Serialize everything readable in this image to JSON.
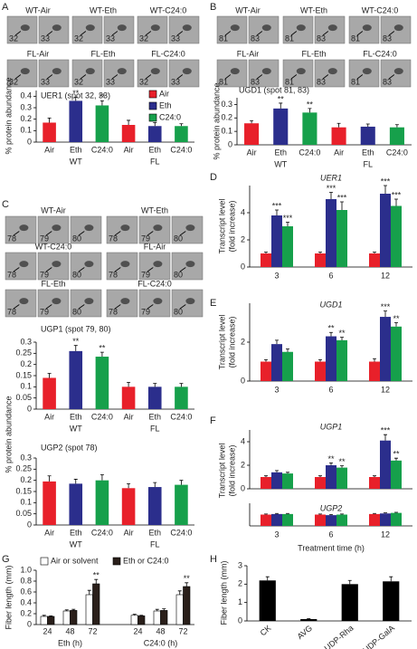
{
  "panel_letters": [
    "A",
    "B",
    "C",
    "D",
    "E",
    "F",
    "G",
    "H"
  ],
  "blots": {
    "A": [
      {
        "label": "WT-Air",
        "spots": [
          "32",
          "33"
        ]
      },
      {
        "label": "WT-Eth",
        "spots": [
          "32",
          "33"
        ]
      },
      {
        "label": "WT-C24:0",
        "spots": [
          "32",
          "33"
        ]
      },
      {
        "label": "FL-Air",
        "spots": [
          "32",
          "33"
        ]
      },
      {
        "label": "FL-Eth",
        "spots": [
          "32",
          "33"
        ]
      },
      {
        "label": "FL-C24:0",
        "spots": [
          "32",
          "33"
        ]
      }
    ],
    "B": [
      {
        "label": "WT-Air",
        "spots": [
          "81",
          "83"
        ]
      },
      {
        "label": "WT-Eth",
        "spots": [
          "81",
          "83"
        ]
      },
      {
        "label": "WT-C24:0",
        "spots": [
          "81",
          "83"
        ]
      },
      {
        "label": "FL-Air",
        "spots": [
          "81",
          "83"
        ]
      },
      {
        "label": "FL-Eth",
        "spots": [
          "81",
          "83"
        ]
      },
      {
        "label": "FL-C24:0",
        "spots": [
          "81",
          "83"
        ]
      }
    ],
    "C": [
      {
        "label": "WT-Air",
        "spots": [
          "78",
          "79",
          "80"
        ]
      },
      {
        "label": "WT-Eth",
        "spots": [
          "78",
          "79",
          "80"
        ]
      },
      {
        "label": "WT-C24:0",
        "spots": [
          "78",
          "79",
          "80"
        ]
      },
      {
        "label": "FL-Air",
        "spots": [
          "78",
          "79",
          "80"
        ]
      },
      {
        "label": "FL-Eth",
        "spots": [
          "78",
          "79",
          "80"
        ]
      },
      {
        "label": "FL-C24:0",
        "spots": [
          "78",
          "79",
          "80"
        ]
      }
    ]
  },
  "chart_data": [
    {
      "type": "bar",
      "title": "UER1 (spot 32, 33)",
      "ylabel": [
        "% protein abundance"
      ],
      "categories": [
        "WT",
        "FL"
      ],
      "legend": "upper right",
      "series": [
        {
          "name": "Air",
          "color": "#e8202a",
          "values": [
            0.17,
            0.15
          ],
          "errors": [
            0.04,
            0.04
          ]
        },
        {
          "name": "Eth",
          "color": "#2b2e8c",
          "values": [
            0.36,
            0.14
          ],
          "errors": [
            0.03,
            0.03
          ],
          "labels": [
            "**",
            null
          ]
        },
        {
          "name": "C24:0",
          "color": "#16a04b",
          "values": [
            0.32,
            0.14
          ],
          "errors": [
            0.04,
            0.02
          ],
          "labels": [
            "**",
            null
          ]
        }
      ],
      "ylim": [
        0,
        0.45
      ],
      "yticks": [
        0,
        0.1,
        0.2,
        0.3,
        0.4
      ]
    },
    {
      "type": "bar",
      "title": "UGD1 (spot 81, 83)",
      "ylabel": [
        "% protein abundance"
      ],
      "categories": [
        "WT",
        "FL"
      ],
      "series": [
        {
          "name": "Air",
          "color": "#e8202a",
          "values": [
            0.16,
            0.13
          ],
          "errors": [
            0.02,
            0.03
          ]
        },
        {
          "name": "Eth",
          "color": "#2b2e8c",
          "values": [
            0.27,
            0.135
          ],
          "errors": [
            0.04,
            0.02
          ],
          "labels": [
            "**",
            null
          ]
        },
        {
          "name": "C24:0",
          "color": "#16a04b",
          "values": [
            0.24,
            0.13
          ],
          "errors": [
            0.03,
            0.02
          ],
          "labels": [
            "**",
            null
          ]
        }
      ],
      "ylim": [
        0,
        0.35
      ],
      "yticks": [
        0,
        0.1,
        0.2,
        0.3
      ]
    },
    {
      "type": "bar",
      "title": "UGP1 (spot 79, 80)",
      "ylabel": [
        "% protein abundance"
      ],
      "categories": [
        "WT",
        "FL"
      ],
      "series": [
        {
          "name": "Air",
          "color": "#e8202a",
          "values": [
            0.14,
            0.1
          ],
          "errors": [
            0.02,
            0.02
          ]
        },
        {
          "name": "Eth",
          "color": "#2b2e8c",
          "values": [
            0.26,
            0.1
          ],
          "errors": [
            0.025,
            0.015
          ],
          "labels": [
            "**",
            null
          ]
        },
        {
          "name": "C24:0",
          "color": "#16a04b",
          "values": [
            0.235,
            0.1
          ],
          "errors": [
            0.02,
            0.015
          ],
          "labels": [
            "**",
            null
          ]
        }
      ],
      "ylim": [
        0,
        0.3
      ],
      "yticks": [
        0,
        0.05,
        0.1,
        0.15,
        0.2,
        0.25,
        0.3
      ]
    },
    {
      "type": "bar",
      "title": "UGP2 (spot 78)",
      "categories": [
        "WT",
        "FL"
      ],
      "series": [
        {
          "name": "Air",
          "color": "#e8202a",
          "values": [
            0.195,
            0.165
          ],
          "errors": [
            0.025,
            0.02
          ]
        },
        {
          "name": "Eth",
          "color": "#2b2e8c",
          "values": [
            0.185,
            0.17
          ],
          "errors": [
            0.02,
            0.02
          ]
        },
        {
          "name": "C24:0",
          "color": "#16a04b",
          "values": [
            0.2,
            0.18
          ],
          "errors": [
            0.025,
            0.02
          ]
        }
      ],
      "ylim": [
        0,
        0.3
      ],
      "yticks": [
        0,
        0.05,
        0.1,
        0.15,
        0.2,
        0.25,
        0.3
      ]
    },
    {
      "type": "bar",
      "title": "UER1",
      "ylabel": [
        "Transcript level",
        "(fold increase)"
      ],
      "categories": [
        "3",
        "6",
        "12"
      ],
      "series": [
        {
          "name": "Air",
          "color": "#e8202a",
          "values": [
            1,
            1,
            1
          ],
          "errors": [
            0.1,
            0.1,
            0.1
          ]
        },
        {
          "name": "Eth",
          "color": "#2b2e8c",
          "values": [
            3.8,
            5.0,
            5.4
          ],
          "errors": [
            0.4,
            0.5,
            0.6
          ],
          "labels": [
            "***",
            "***",
            "***"
          ]
        },
        {
          "name": "C24:0",
          "color": "#16a04b",
          "values": [
            3.0,
            4.2,
            4.5
          ],
          "errors": [
            0.3,
            0.6,
            0.5
          ],
          "labels": [
            "***",
            "***",
            "***"
          ]
        }
      ],
      "ylim": [
        0,
        6
      ],
      "yticks": [
        0,
        2,
        4
      ]
    },
    {
      "type": "bar",
      "title": "UGD1",
      "ylabel": [
        "Transcript level",
        "(fold increase)"
      ],
      "categories": [
        "3",
        "6",
        "12"
      ],
      "series": [
        {
          "name": "Air",
          "color": "#e8202a",
          "values": [
            1,
            1,
            1
          ],
          "errors": [
            0.1,
            0.1,
            0.15
          ]
        },
        {
          "name": "Eth",
          "color": "#2b2e8c",
          "values": [
            1.9,
            2.3,
            3.3
          ],
          "errors": [
            0.2,
            0.2,
            0.3
          ],
          "labels": [
            null,
            "**",
            "***"
          ]
        },
        {
          "name": "C24:0",
          "color": "#16a04b",
          "values": [
            1.5,
            2.1,
            2.8
          ],
          "errors": [
            0.15,
            0.15,
            0.2
          ],
          "labels": [
            null,
            "**",
            "**"
          ]
        }
      ],
      "ylim": [
        0,
        4
      ],
      "yticks": [
        0,
        2
      ]
    },
    {
      "type": "bar",
      "title": "UGP1",
      "ylabel": [
        "Transcript level",
        "(fold increase)"
      ],
      "series": [
        {
          "name": "Air",
          "color": "#e8202a",
          "values": [
            1,
            1,
            1
          ],
          "errors": [
            0.1,
            0.1,
            0.1
          ]
        },
        {
          "name": "Eth",
          "color": "#2b2e8c",
          "values": [
            1.4,
            2.0,
            4.1
          ],
          "errors": [
            0.15,
            0.2,
            0.5
          ],
          "labels": [
            null,
            "**",
            "***"
          ]
        },
        {
          "name": "C24:0",
          "color": "#16a04b",
          "values": [
            1.3,
            1.8,
            2.4
          ],
          "errors": [
            0.1,
            0.15,
            0.2
          ],
          "labels": [
            null,
            "**",
            "**"
          ]
        }
      ],
      "ylim": [
        0,
        5
      ],
      "yticks": [
        0,
        2,
        4
      ]
    },
    {
      "type": "bar",
      "title": "UGP2",
      "xlabel": "Treatment time (h)",
      "categories": [
        "3",
        "6",
        "12"
      ],
      "series": [
        {
          "name": "Air",
          "color": "#e8202a",
          "values": [
            1,
            1,
            1.05
          ],
          "errors": [
            0.05,
            0.05,
            0.05
          ]
        },
        {
          "name": "Eth",
          "color": "#2b2e8c",
          "values": [
            1.05,
            0.95,
            1.1
          ],
          "errors": [
            0.05,
            0.05,
            0.05
          ]
        },
        {
          "name": "C24:0",
          "color": "#16a04b",
          "values": [
            1.05,
            1.0,
            1.15
          ],
          "errors": [
            0.05,
            0.05,
            0.05
          ]
        }
      ],
      "ylim": [
        0,
        2
      ]
    },
    {
      "type": "bar",
      "ylabel": [
        "Fiber length (mm)"
      ],
      "categories": [
        "24",
        "48",
        "72",
        "24",
        "48",
        "72"
      ],
      "groups": [
        "Eth (h)",
        "C24:0 (h)"
      ],
      "legend": "upper left",
      "series": [
        {
          "name": "Air or solvent",
          "color": "#ffffff",
          "values": [
            0.15,
            0.25,
            0.55,
            0.17,
            0.25,
            0.55
          ],
          "errors": [
            0.02,
            0.02,
            0.08,
            0.02,
            0.03,
            0.07
          ]
        },
        {
          "name": "Eth or C24:0",
          "color": "#2a1f1a",
          "values": [
            0.15,
            0.26,
            0.75,
            0.16,
            0.26,
            0.7
          ],
          "errors": [
            0.01,
            0.02,
            0.08,
            0.01,
            0.03,
            0.07
          ],
          "labels": [
            null,
            null,
            "**",
            null,
            null,
            "**"
          ]
        }
      ],
      "ylim": [
        0,
        1
      ],
      "yticks": [
        0,
        0.2,
        0.4,
        0.6,
        0.8,
        {
          "value": 1,
          "label": "1.0"
        }
      ]
    },
    {
      "type": "bar",
      "ylabel": [
        "Fiber length (mm)"
      ],
      "categories": [
        "CK",
        "AVG",
        "AVG+ UDP-Rha",
        "AVG+ UDP-GalA"
      ],
      "color": "#000000",
      "values": [
        2.2,
        0.1,
        2.0,
        2.15
      ],
      "errors": [
        0.2,
        0.02,
        0.2,
        0.25
      ],
      "ylim": [
        0,
        3
      ],
      "yticks": [
        0,
        1,
        2,
        3
      ]
    }
  ]
}
